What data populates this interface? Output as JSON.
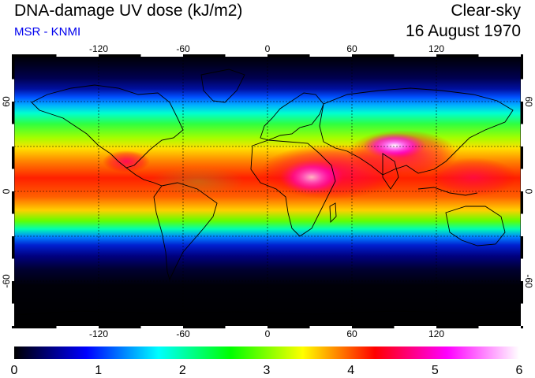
{
  "header": {
    "title": "DNA-damage UV dose (kJ/m2)",
    "source": "MSR - KNMI",
    "condition": "Clear-sky",
    "date": "16 August 1970"
  },
  "map": {
    "lon_ticks": [
      -120,
      -60,
      0,
      60,
      120
    ],
    "lon_tick_labels": [
      "-120",
      "-60",
      "0",
      "60",
      "120"
    ],
    "lat_ticks": [
      60,
      0,
      -60
    ],
    "lat_tick_labels": [
      "60",
      "0",
      "-60"
    ],
    "lon_range": [
      -180,
      180
    ],
    "lat_range": [
      -90,
      90
    ]
  },
  "colorbar": {
    "min": 0,
    "max": 6,
    "tick_labels": [
      "0",
      "1",
      "2",
      "3",
      "4",
      "5",
      "6"
    ],
    "stops": [
      "#000000",
      "#000080",
      "#0000ff",
      "#0080ff",
      "#00ffff",
      "#00ff80",
      "#00ff00",
      "#80ff00",
      "#ffff00",
      "#ff8000",
      "#ff0000",
      "#ff0080",
      "#ff00ff",
      "#ff80ff",
      "#ffffff"
    ]
  },
  "colors": {
    "subtitle": "#0000ee",
    "frame": "#000000"
  }
}
